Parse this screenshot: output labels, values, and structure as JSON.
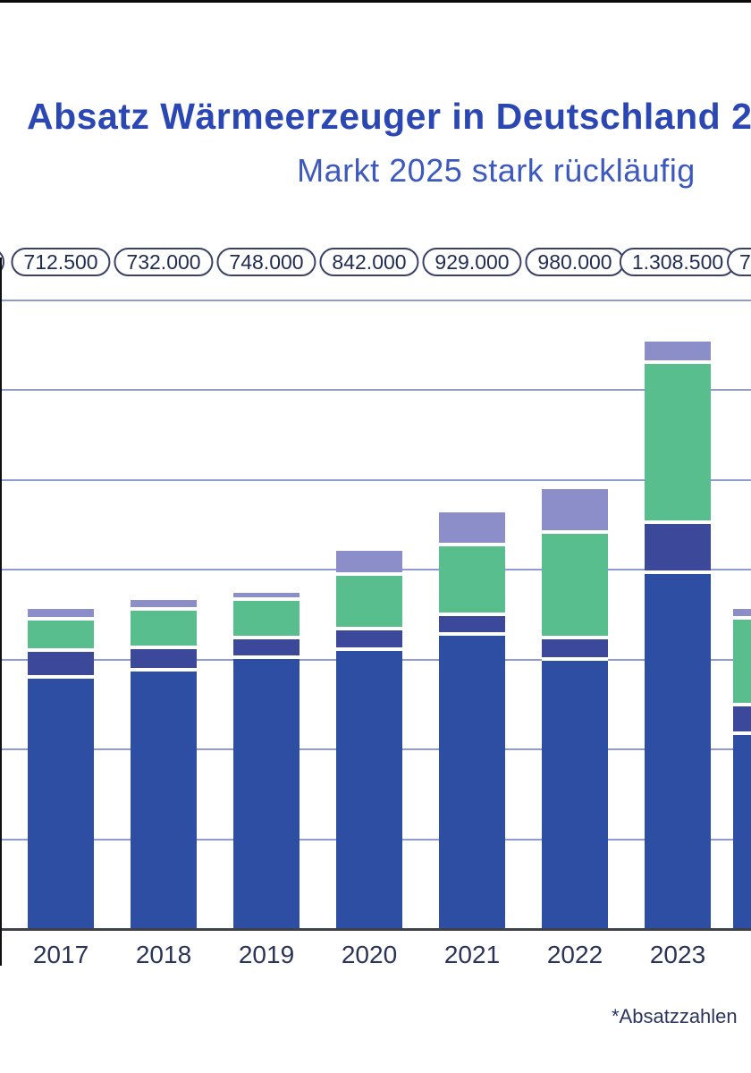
{
  "chart_data": {
    "type": "bar",
    "stacked": true,
    "title": "Absatz Wärmeerzeuger in Deutschland 2",
    "subtitle": "Markt 2025 stark rückläufig",
    "footnote": "*Absatzzahlen",
    "categories": [
      "2017",
      "2018",
      "2019",
      "2020",
      "2021",
      "2022",
      "2023"
    ],
    "totals_labels": [
      "712.500",
      "732.000",
      "748.000",
      "842.000",
      "929.000",
      "980.000",
      "1.308.500"
    ],
    "totals": [
      712500,
      732000,
      748000,
      842000,
      929000,
      980000,
      1308500
    ],
    "series": [
      {
        "name": "segment-dark-blue-bottom",
        "color": "#2E4EA4",
        "values": [
          557500,
          574000,
          600500,
          620000,
          653000,
          598000,
          790500
        ]
      },
      {
        "name": "segment-indigo",
        "color": "#3C4899",
        "values": [
          60500,
          50000,
          44500,
          46000,
          44500,
          46500,
          112500
        ]
      },
      {
        "name": "segment-green",
        "color": "#58BE8E",
        "values": [
          70000,
          84000,
          85000,
          120000,
          154000,
          236000,
          356000
        ]
      },
      {
        "name": "segment-light-purple-top",
        "color": "#8B8EC9",
        "values": [
          24500,
          24000,
          18000,
          56000,
          77500,
          99500,
          49500
        ]
      }
    ],
    "partial_right_bar": {
      "visible_label_fragment": "7",
      "values": [
        432500,
        63000,
        193000,
        24000
      ]
    },
    "partial_left_pill": {
      "visible_label_fragment": ""
    },
    "ylim": [
      0,
      1400000
    ],
    "gridline_step": 200000,
    "grid": true,
    "legend": "none visible (cropped)",
    "colors": {
      "title": "#2B47B3",
      "subtitle": "#3D59BE",
      "gridline": "#8E9BD7",
      "axis_baseline": "#3E434B",
      "pill_border": "#3A4168",
      "pill_text": "#212C52",
      "year_label": "#2A3358",
      "footnote": "#2B3560"
    }
  }
}
